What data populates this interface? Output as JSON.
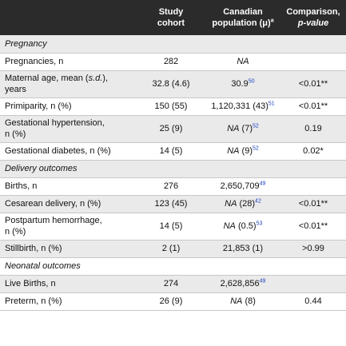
{
  "header": {
    "col1": "",
    "col2_line1": "Study",
    "col2_line2": "cohort",
    "col3_line1": "Canadian",
    "col3_line2": "population (μ)",
    "col3_sup": "a",
    "col4_line1": "Comparison,",
    "col4_line2": "p-value"
  },
  "sections": {
    "pregnancy": "Pregnancy",
    "delivery": "Delivery outcomes",
    "neonatal": "Neonatal outcomes"
  },
  "rows": {
    "pregnancies": {
      "label": "Pregnancies, n",
      "study": "282",
      "canada": "NA",
      "comparison": ""
    },
    "maternal_age": {
      "label_a": "Maternal age, mean (",
      "label_sd": "s.d.",
      "label_b": "),",
      "label_c": "years",
      "study": "32.8 (4.6)",
      "canada": "30.9",
      "canada_ref": "50",
      "comparison": "<0.01**"
    },
    "primiparity": {
      "label": "Primiparity, n (%)",
      "study": "150 (55)",
      "canada": "1,120,331 (43)",
      "canada_ref": "51",
      "comparison": "<0.01**"
    },
    "gest_hypertension": {
      "label_a": "Gestational hypertension,",
      "label_b": "n (%)",
      "study": "25 (9)",
      "canada_na": "NA",
      "canada": " (7)",
      "canada_ref": "52",
      "comparison": "0.19"
    },
    "gest_diabetes": {
      "label": "Gestational diabetes, n (%)",
      "study": "14 (5)",
      "canada_na": "NA",
      "canada": " (9)",
      "canada_ref": "52",
      "comparison": "0.02*"
    },
    "births": {
      "label": "Births, n",
      "study": "276",
      "canada": "2,650,709",
      "canada_ref": "49",
      "comparison": ""
    },
    "cesarean": {
      "label": "Cesarean delivery, n (%)",
      "study": "123 (45)",
      "canada_na": "NA",
      "canada": " (28)",
      "canada_ref": "42",
      "comparison": "<0.01**"
    },
    "pph": {
      "label_a": "Postpartum hemorrhage,",
      "label_b": "n (%)",
      "study": "14 (5)",
      "canada_na": "NA",
      "canada": " (0.5)",
      "canada_ref": "53",
      "comparison": "<0.01**"
    },
    "stillbirth": {
      "label": "Stillbirth, n (%)",
      "study": "2 (1)",
      "canada": "21,853 (1)",
      "comparison": ">0.99"
    },
    "live_births": {
      "label": "Live Births, n",
      "study": "274",
      "canada": "2,628,856",
      "canada_ref": "49",
      "comparison": ""
    },
    "preterm": {
      "label": "Preterm, n (%)",
      "study": "26 (9)",
      "canada_na": "NA",
      "canada": " (8)",
      "comparison": "0.44"
    }
  }
}
